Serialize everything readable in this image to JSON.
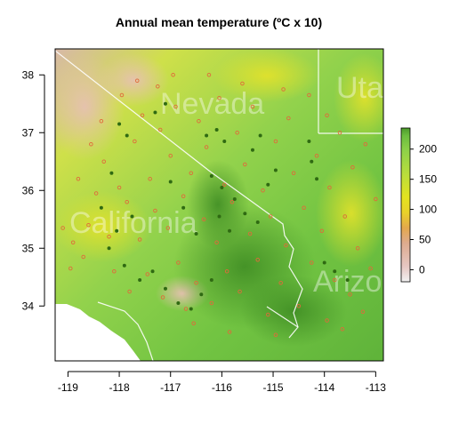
{
  "chart_data": {
    "type": "heatmap",
    "title": "Annual mean temperature (ºC x 10)",
    "xlabel": "",
    "ylabel": "",
    "xlim": [
      -119.25,
      -112.85
    ],
    "ylim": [
      33.05,
      38.45
    ],
    "x_ticks": [
      -119,
      -118,
      -117,
      -116,
      -115,
      -114,
      -113
    ],
    "x_tick_labels": [
      "-119",
      "-118",
      "-117",
      "-116",
      "-115",
      "-114",
      "-113"
    ],
    "y_ticks": [
      34,
      35,
      36,
      37,
      38
    ],
    "y_tick_labels": [
      "34",
      "35",
      "36",
      "37",
      "38"
    ],
    "colorbar": {
      "range": [
        -20,
        235
      ],
      "ticks": [
        0,
        50,
        100,
        150,
        200
      ],
      "tick_labels": [
        "0",
        "50",
        "100",
        "150",
        "200"
      ],
      "colors": [
        "#f2f2f2",
        "#e6c6c2",
        "#ddab8f",
        "#e4a84c",
        "#e9d12a",
        "#e3e31f",
        "#b9dd3c",
        "#8fd248",
        "#6bbd3f",
        "#4c9a2c"
      ]
    },
    "map_labels": [
      "California",
      "Nevada",
      "Utah",
      "Arizona"
    ],
    "series": [
      {
        "name": "",
        "marker": "open-circle",
        "color": "#e06a3a",
        "points": [
          [
            -118.9,
            35.1
          ],
          [
            -118.7,
            34.85
          ],
          [
            -118.6,
            35.4
          ],
          [
            -118.45,
            35.95
          ],
          [
            -118.3,
            36.5
          ],
          [
            -118.2,
            35.2
          ],
          [
            -118.1,
            34.6
          ],
          [
            -118.0,
            36.05
          ],
          [
            -117.95,
            37.65
          ],
          [
            -117.85,
            35.8
          ],
          [
            -117.8,
            34.25
          ],
          [
            -117.7,
            36.85
          ],
          [
            -117.6,
            35.15
          ],
          [
            -117.55,
            37.3
          ],
          [
            -117.45,
            34.55
          ],
          [
            -117.4,
            36.2
          ],
          [
            -117.3,
            35.65
          ],
          [
            -117.2,
            37.05
          ],
          [
            -117.15,
            34.15
          ],
          [
            -117.05,
            35.35
          ],
          [
            -117.0,
            36.6
          ],
          [
            -116.9,
            37.45
          ],
          [
            -116.85,
            34.75
          ],
          [
            -116.75,
            35.9
          ],
          [
            -116.7,
            33.95
          ],
          [
            -116.6,
            36.3
          ],
          [
            -116.5,
            34.4
          ],
          [
            -116.45,
            37.2
          ],
          [
            -116.35,
            35.5
          ],
          [
            -116.3,
            36.75
          ],
          [
            -116.2,
            34.05
          ],
          [
            -116.1,
            35.1
          ],
          [
            -116.05,
            37.6
          ],
          [
            -115.95,
            36.1
          ],
          [
            -115.9,
            34.6
          ],
          [
            -115.8,
            35.8
          ],
          [
            -115.7,
            37.0
          ],
          [
            -115.65,
            34.25
          ],
          [
            -115.55,
            36.45
          ],
          [
            -115.45,
            35.25
          ],
          [
            -115.4,
            37.45
          ],
          [
            -115.3,
            34.8
          ],
          [
            -115.2,
            36.0
          ],
          [
            -115.1,
            33.85
          ],
          [
            -115.05,
            35.55
          ],
          [
            -114.95,
            36.85
          ],
          [
            -114.85,
            34.4
          ],
          [
            -114.75,
            35.05
          ],
          [
            -114.7,
            37.25
          ],
          [
            -114.6,
            36.3
          ],
          [
            -114.5,
            34.0
          ],
          [
            -114.4,
            35.7
          ],
          [
            -114.3,
            37.65
          ],
          [
            -114.25,
            34.75
          ],
          [
            -114.15,
            36.6
          ],
          [
            -114.05,
            35.3
          ],
          [
            -113.95,
            33.75
          ],
          [
            -113.9,
            36.05
          ],
          [
            -113.8,
            34.45
          ],
          [
            -113.7,
            37.0
          ],
          [
            -113.6,
            35.55
          ],
          [
            -113.5,
            34.2
          ],
          [
            -113.45,
            36.4
          ],
          [
            -113.35,
            35.0
          ],
          [
            -113.25,
            33.9
          ],
          [
            -113.2,
            36.8
          ],
          [
            -113.1,
            34.65
          ],
          [
            -113.0,
            35.85
          ],
          [
            -117.65,
            37.9
          ],
          [
            -117.25,
            37.8
          ],
          [
            -116.95,
            38.0
          ],
          [
            -118.55,
            36.8
          ],
          [
            -118.35,
            37.2
          ],
          [
            -118.95,
            34.65
          ],
          [
            -119.1,
            35.35
          ],
          [
            -118.8,
            36.2
          ],
          [
            -116.55,
            33.7
          ],
          [
            -115.85,
            33.55
          ],
          [
            -114.95,
            33.5
          ],
          [
            -113.65,
            33.6
          ],
          [
            -116.25,
            38.0
          ],
          [
            -115.6,
            37.85
          ],
          [
            -114.8,
            37.75
          ],
          [
            -113.95,
            37.3
          ]
        ]
      },
      {
        "name": "",
        "marker": "filled-dot",
        "color": "#2f6a12",
        "points": [
          [
            -118.2,
            35.0
          ],
          [
            -118.05,
            35.3
          ],
          [
            -117.9,
            34.7
          ],
          [
            -117.75,
            35.55
          ],
          [
            -117.6,
            34.45
          ],
          [
            -117.35,
            34.6
          ],
          [
            -117.1,
            34.3
          ],
          [
            -116.85,
            34.05
          ],
          [
            -116.6,
            33.95
          ],
          [
            -116.4,
            34.2
          ],
          [
            -116.2,
            34.45
          ],
          [
            -118.0,
            37.15
          ],
          [
            -117.85,
            36.95
          ],
          [
            -117.3,
            37.35
          ],
          [
            -117.1,
            37.5
          ],
          [
            -116.3,
            36.95
          ],
          [
            -116.1,
            37.05
          ],
          [
            -115.95,
            36.85
          ],
          [
            -116.2,
            36.25
          ],
          [
            -116.0,
            36.05
          ],
          [
            -115.75,
            35.85
          ],
          [
            -115.55,
            35.6
          ],
          [
            -115.3,
            35.45
          ],
          [
            -116.05,
            35.55
          ],
          [
            -115.85,
            35.3
          ],
          [
            -114.95,
            36.35
          ],
          [
            -115.1,
            36.1
          ],
          [
            -114.3,
            36.85
          ],
          [
            -114.25,
            36.5
          ],
          [
            -114.15,
            36.2
          ],
          [
            -114.0,
            34.75
          ],
          [
            -113.8,
            34.6
          ],
          [
            -113.55,
            34.45
          ],
          [
            -115.4,
            36.7
          ],
          [
            -115.25,
            36.95
          ],
          [
            -116.5,
            35.25
          ],
          [
            -116.75,
            35.7
          ],
          [
            -117.0,
            36.15
          ],
          [
            -118.35,
            35.7
          ],
          [
            -118.15,
            36.3
          ]
        ]
      }
    ]
  }
}
